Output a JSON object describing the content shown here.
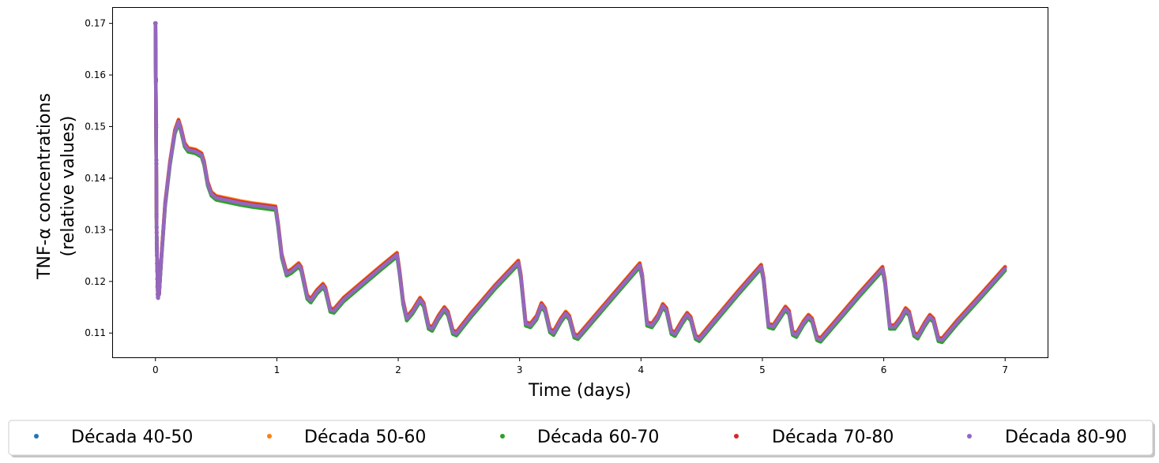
{
  "chart_data": {
    "type": "scatter",
    "title": "",
    "xlabel": "Time (days)",
    "ylabel_lines": [
      "TNF-α concentrations",
      "(relative values)"
    ],
    "xlim": [
      -0.35,
      7.35
    ],
    "ylim": [
      0.1053,
      0.173
    ],
    "x_ticks": [
      0,
      1,
      2,
      3,
      4,
      5,
      6,
      7
    ],
    "y_ticks": [
      0.11,
      0.12,
      0.13,
      0.14,
      0.15,
      0.16,
      0.17
    ],
    "y_tick_labels": [
      "0.11",
      "0.12",
      "0.13",
      "0.14",
      "0.15",
      "0.16",
      "0.17"
    ],
    "grid": false,
    "legend_position": "bottom, outside, single row",
    "curve_points": [
      [
        0.0,
        0.17
      ],
      [
        0.005,
        0.15
      ],
      [
        0.01,
        0.128
      ],
      [
        0.02,
        0.117
      ],
      [
        0.03,
        0.1175
      ],
      [
        0.05,
        0.125
      ],
      [
        0.08,
        0.135
      ],
      [
        0.12,
        0.143
      ],
      [
        0.16,
        0.149
      ],
      [
        0.19,
        0.151
      ],
      [
        0.21,
        0.1495
      ],
      [
        0.24,
        0.1465
      ],
      [
        0.27,
        0.1455
      ],
      [
        0.33,
        0.1452
      ],
      [
        0.38,
        0.1445
      ],
      [
        0.4,
        0.143
      ],
      [
        0.43,
        0.139
      ],
      [
        0.46,
        0.137
      ],
      [
        0.5,
        0.1362
      ],
      [
        0.6,
        0.1357
      ],
      [
        0.7,
        0.1352
      ],
      [
        0.8,
        0.1348
      ],
      [
        0.9,
        0.1345
      ],
      [
        0.99,
        0.1342
      ],
      [
        1.01,
        0.131
      ],
      [
        1.04,
        0.125
      ],
      [
        1.08,
        0.1215
      ],
      [
        1.12,
        0.122
      ],
      [
        1.18,
        0.1232
      ],
      [
        1.2,
        0.1225
      ],
      [
        1.25,
        0.117
      ],
      [
        1.28,
        0.1163
      ],
      [
        1.33,
        0.118
      ],
      [
        1.38,
        0.1192
      ],
      [
        1.4,
        0.1185
      ],
      [
        1.44,
        0.1145
      ],
      [
        1.47,
        0.1143
      ],
      [
        1.55,
        0.1165
      ],
      [
        1.7,
        0.1195
      ],
      [
        1.85,
        0.1225
      ],
      [
        1.99,
        0.1252
      ],
      [
        2.01,
        0.122
      ],
      [
        2.04,
        0.116
      ],
      [
        2.07,
        0.1128
      ],
      [
        2.12,
        0.1142
      ],
      [
        2.18,
        0.1165
      ],
      [
        2.21,
        0.1155
      ],
      [
        2.25,
        0.1112
      ],
      [
        2.28,
        0.1108
      ],
      [
        2.33,
        0.113
      ],
      [
        2.38,
        0.1147
      ],
      [
        2.41,
        0.1138
      ],
      [
        2.45,
        0.1102
      ],
      [
        2.48,
        0.1099
      ],
      [
        2.6,
        0.1135
      ],
      [
        2.8,
        0.119
      ],
      [
        2.99,
        0.1237
      ],
      [
        3.01,
        0.121
      ],
      [
        3.05,
        0.1118
      ],
      [
        3.09,
        0.1115
      ],
      [
        3.14,
        0.113
      ],
      [
        3.18,
        0.1155
      ],
      [
        3.21,
        0.1145
      ],
      [
        3.25,
        0.1105
      ],
      [
        3.28,
        0.11
      ],
      [
        3.34,
        0.1125
      ],
      [
        3.38,
        0.1138
      ],
      [
        3.41,
        0.113
      ],
      [
        3.45,
        0.1095
      ],
      [
        3.48,
        0.1092
      ],
      [
        3.6,
        0.1125
      ],
      [
        3.8,
        0.118
      ],
      [
        3.99,
        0.1232
      ],
      [
        4.01,
        0.121
      ],
      [
        4.05,
        0.1118
      ],
      [
        4.09,
        0.1115
      ],
      [
        4.14,
        0.1132
      ],
      [
        4.18,
        0.1153
      ],
      [
        4.21,
        0.1145
      ],
      [
        4.25,
        0.1102
      ],
      [
        4.28,
        0.1098
      ],
      [
        4.34,
        0.1122
      ],
      [
        4.38,
        0.1136
      ],
      [
        4.41,
        0.1128
      ],
      [
        4.45,
        0.1092
      ],
      [
        4.48,
        0.1088
      ],
      [
        4.6,
        0.1122
      ],
      [
        4.8,
        0.1178
      ],
      [
        4.99,
        0.1229
      ],
      [
        5.01,
        0.1205
      ],
      [
        5.05,
        0.1115
      ],
      [
        5.09,
        0.1112
      ],
      [
        5.14,
        0.113
      ],
      [
        5.19,
        0.1148
      ],
      [
        5.22,
        0.114
      ],
      [
        5.25,
        0.11
      ],
      [
        5.28,
        0.1096
      ],
      [
        5.34,
        0.112
      ],
      [
        5.38,
        0.1132
      ],
      [
        5.41,
        0.1125
      ],
      [
        5.45,
        0.109
      ],
      [
        5.48,
        0.1087
      ],
      [
        5.6,
        0.112
      ],
      [
        5.8,
        0.1175
      ],
      [
        5.99,
        0.1225
      ],
      [
        6.01,
        0.12
      ],
      [
        6.05,
        0.1112
      ],
      [
        6.09,
        0.1112
      ],
      [
        6.14,
        0.1128
      ],
      [
        6.18,
        0.1145
      ],
      [
        6.21,
        0.1138
      ],
      [
        6.25,
        0.1098
      ],
      [
        6.28,
        0.1093
      ],
      [
        6.34,
        0.1118
      ],
      [
        6.38,
        0.1132
      ],
      [
        6.41,
        0.1125
      ],
      [
        6.45,
        0.1088
      ],
      [
        6.48,
        0.1086
      ],
      [
        6.6,
        0.112
      ],
      [
        6.8,
        0.1172
      ],
      [
        7.0,
        0.1225
      ]
    ],
    "initial_scatter": [
      [
        0.005,
        0.1592
      ],
      [
        0.005,
        0.1588
      ],
      [
        0.006,
        0.1504
      ],
      [
        0.006,
        0.1499
      ],
      [
        0.007,
        0.1435
      ],
      [
        0.007,
        0.1428
      ],
      [
        0.008,
        0.1375
      ],
      [
        0.008,
        0.1365
      ],
      [
        0.009,
        0.133
      ],
      [
        0.009,
        0.1325
      ],
      [
        0.01,
        0.1305
      ],
      [
        0.01,
        0.1295
      ],
      [
        0.011,
        0.1285
      ],
      [
        0.011,
        0.128
      ],
      [
        0.012,
        0.1265
      ],
      [
        0.012,
        0.125
      ],
      [
        0.013,
        0.1235
      ],
      [
        0.014,
        0.122
      ],
      [
        0.015,
        0.1205
      ],
      [
        0.016,
        0.119
      ],
      [
        0.018,
        0.1175
      ],
      [
        0.02,
        0.117
      ],
      [
        0.022,
        0.1168
      ]
    ],
    "series": [
      {
        "name": "Década 40-50",
        "color": "#1f77b4",
        "offset": 0.0
      },
      {
        "name": "Década 50-60",
        "color": "#ff7f0e",
        "offset": 0.0004
      },
      {
        "name": "Década 60-70",
        "color": "#2ca02c",
        "offset": -0.0004
      },
      {
        "name": "Década 70-80",
        "color": "#d62728",
        "offset": 0.0002
      },
      {
        "name": "Década 80-90",
        "color": "#9467bd",
        "offset": 0.0
      }
    ]
  }
}
